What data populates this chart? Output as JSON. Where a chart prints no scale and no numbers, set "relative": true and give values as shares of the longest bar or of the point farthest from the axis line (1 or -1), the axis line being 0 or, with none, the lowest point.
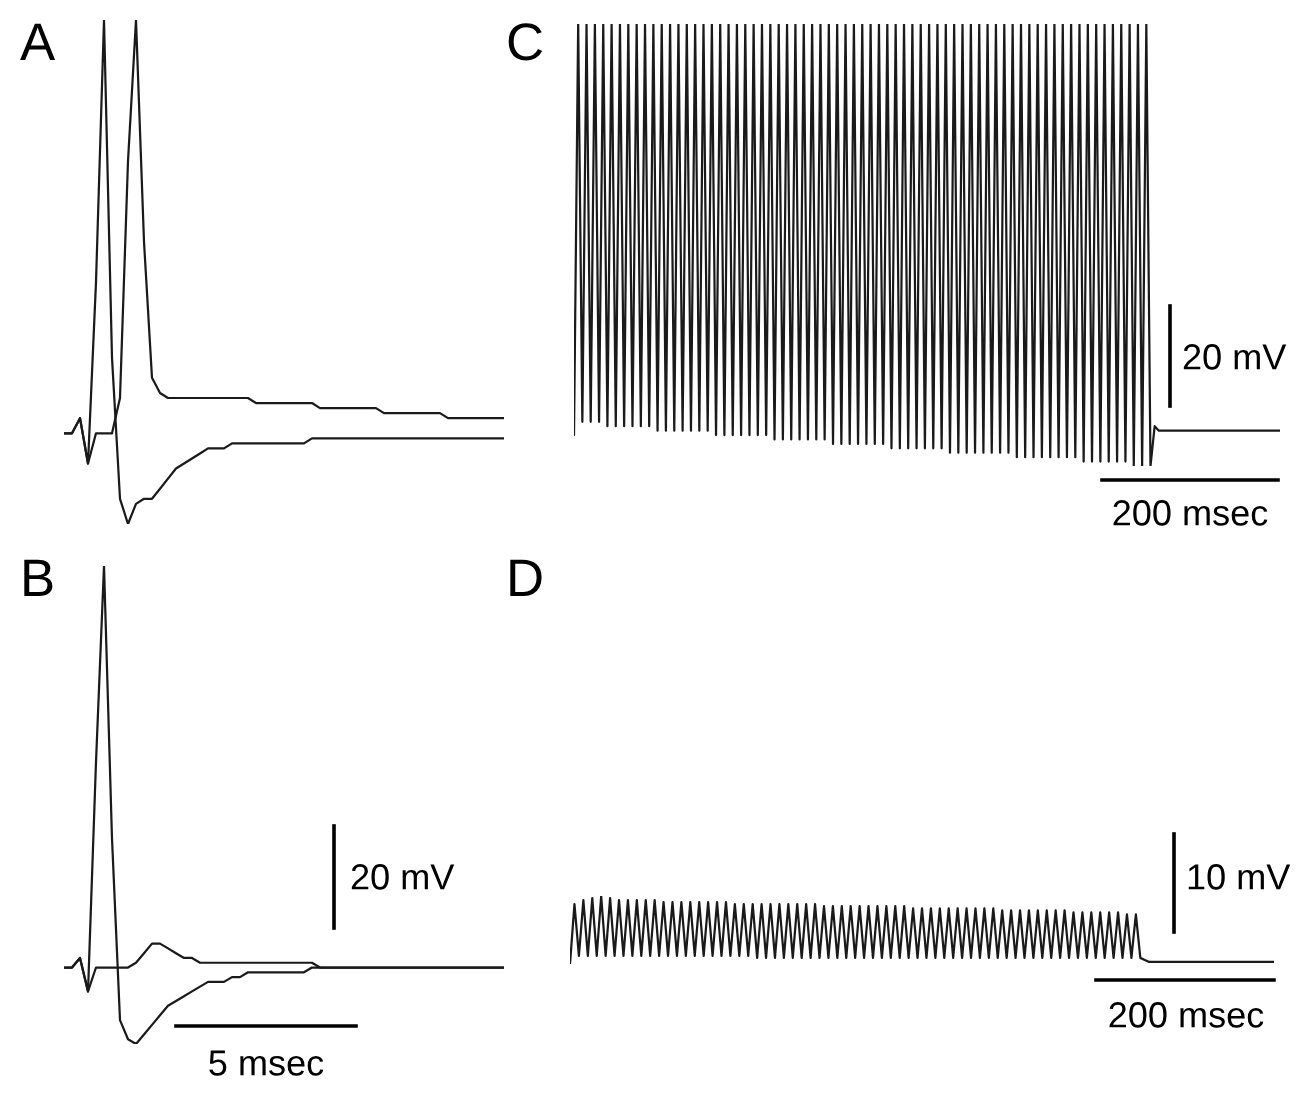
{
  "chart_data": [
    {
      "type": "line",
      "title": "A",
      "relative": true,
      "categories": [
        null,
        null,
        null,
        null,
        null,
        null,
        null,
        null,
        null,
        null,
        null,
        null,
        null,
        null,
        null,
        null,
        null,
        null,
        null,
        null,
        null,
        null,
        null,
        null,
        null,
        null,
        null,
        null,
        null,
        null,
        null,
        null,
        null,
        null,
        null,
        null,
        null,
        null,
        null,
        null,
        null,
        null,
        null,
        null,
        null,
        null,
        null,
        null,
        null,
        null,
        null,
        null,
        null,
        null,
        null,
        null
      ],
      "series": [
        {
          "color": "#1a1a1a",
          "values": [
            0.18,
            0.18,
            0.21,
            0.12,
            0.48,
            1,
            0.33,
            0.05,
            0,
            0.04,
            0.05,
            0.05,
            0.07,
            0.09,
            0.11,
            0.12,
            0.13,
            0.14,
            0.15,
            0.15,
            0.15,
            0.16,
            0.16,
            0.16,
            0.16,
            0.16,
            0.16,
            0.16,
            0.16,
            0.16,
            0.16,
            0.17,
            0.17,
            0.17,
            0.17,
            0.17,
            0.17,
            0.17,
            0.17,
            0.17,
            0.17,
            0.17,
            0.17,
            0.17,
            0.17,
            0.17,
            0.17,
            0.17,
            0.17,
            0.17,
            0.17,
            0.17,
            0.17,
            0.17,
            0.17,
            0.17
          ]
        },
        {
          "color": "#1a1a1a",
          "values": [
            0.18,
            0.18,
            0.21,
            0.12,
            0.18,
            0.18,
            0.18,
            0.25,
            0.72,
            1,
            0.56,
            0.29,
            0.26,
            0.25,
            0.25,
            0.25,
            0.25,
            0.25,
            0.25,
            0.25,
            0.25,
            0.25,
            0.25,
            0.25,
            0.24,
            0.24,
            0.24,
            0.24,
            0.24,
            0.24,
            0.24,
            0.24,
            0.23,
            0.23,
            0.23,
            0.23,
            0.23,
            0.23,
            0.23,
            0.23,
            0.22,
            0.22,
            0.22,
            0.22,
            0.22,
            0.22,
            0.22,
            0.22,
            0.21,
            0.21,
            0.21,
            0.21,
            0.21,
            0.21,
            0.21,
            0.21
          ]
        }
      ]
    },
    {
      "type": "line",
      "title": "B",
      "relative": true,
      "categories": [
        null,
        null,
        null,
        null,
        null,
        null,
        null,
        null,
        null,
        null,
        null,
        null,
        null,
        null,
        null,
        null,
        null,
        null,
        null,
        null,
        null,
        null,
        null,
        null,
        null,
        null,
        null,
        null,
        null,
        null,
        null,
        null,
        null,
        null,
        null,
        null,
        null,
        null,
        null,
        null,
        null,
        null,
        null,
        null,
        null,
        null,
        null,
        null,
        null,
        null,
        null,
        null,
        null,
        null,
        null,
        null
      ],
      "series": [
        {
          "color": "#1a1a1a",
          "values": [
            0.16,
            0.16,
            0.18,
            0.11,
            0.59,
            1,
            0.43,
            0.05,
            0.01,
            0,
            0.02,
            0.04,
            0.06,
            0.08,
            0.09,
            0.1,
            0.11,
            0.12,
            0.13,
            0.13,
            0.13,
            0.14,
            0.14,
            0.15,
            0.15,
            0.15,
            0.15,
            0.15,
            0.15,
            0.15,
            0.15,
            0.16,
            0.16,
            0.16,
            0.16,
            0.16,
            0.16,
            0.16,
            0.16,
            0.16,
            0.16,
            0.16,
            0.16,
            0.16,
            0.16,
            0.16,
            0.16,
            0.16,
            0.16,
            0.16,
            0.16,
            0.16,
            0.16,
            0.16,
            0.16,
            0.16
          ]
        },
        {
          "color": "#1a1a1a",
          "values": [
            0.16,
            0.16,
            0.18,
            0.11,
            0.16,
            0.16,
            0.16,
            0.16,
            0.16,
            0.17,
            0.19,
            0.21,
            0.21,
            0.2,
            0.19,
            0.18,
            0.18,
            0.17,
            0.17,
            0.17,
            0.17,
            0.17,
            0.17,
            0.17,
            0.17,
            0.17,
            0.17,
            0.17,
            0.17,
            0.17,
            0.17,
            0.17,
            0.16,
            0.16,
            0.16,
            0.16,
            0.16,
            0.16,
            0.16,
            0.16,
            0.16,
            0.16,
            0.16,
            0.16,
            0.16,
            0.16,
            0.16,
            0.16,
            0.16,
            0.16,
            0.16,
            0.16,
            0.16,
            0.16,
            0.16,
            0.16
          ]
        }
      ],
      "annotations": [
        "20 mV",
        "5 msec"
      ]
    },
    {
      "type": "line",
      "title": "C",
      "relative": true,
      "categories": [
        null,
        null,
        null,
        null,
        null,
        null,
        null,
        null,
        null,
        null,
        null,
        null,
        null,
        null,
        null,
        null,
        null,
        null,
        null,
        null,
        null,
        null,
        null,
        null,
        null,
        null,
        null,
        null,
        null,
        null,
        null,
        null,
        null,
        null,
        null,
        null,
        null,
        null,
        null,
        null,
        null,
        null,
        null,
        null,
        null,
        null,
        null,
        null,
        null,
        null,
        null,
        null,
        null,
        null,
        null,
        null,
        null,
        null,
        null,
        null,
        null,
        null,
        null,
        null,
        null,
        null,
        null,
        null,
        null,
        null,
        null,
        null,
        null,
        null,
        null,
        null,
        null,
        null,
        null,
        null,
        null,
        null,
        null,
        null,
        null,
        null,
        null,
        null,
        null,
        null,
        null,
        null,
        null,
        null,
        null,
        null,
        null,
        null,
        null,
        null,
        null,
        null,
        null,
        null,
        null,
        null,
        null,
        null,
        null,
        null,
        null,
        null,
        null,
        null,
        null,
        null,
        null,
        null,
        null,
        null,
        null,
        null,
        null,
        null,
        null,
        null,
        null,
        null,
        null,
        null,
        null,
        null,
        null,
        null,
        null,
        null,
        null,
        null,
        null,
        null,
        null,
        null,
        null,
        null,
        null,
        null,
        null,
        null,
        null,
        null,
        null,
        null,
        null,
        null,
        null,
        null,
        null,
        null,
        null,
        null,
        null,
        null,
        null,
        null,
        null,
        null,
        null,
        null,
        null,
        null
      ],
      "series": [
        {
          "color": "#1a1a1a",
          "values": [
            0.07,
            1,
            0.1,
            1,
            0.1,
            1,
            0.1,
            1,
            0.09,
            1,
            0.09,
            1,
            0.09,
            1,
            0.09,
            1,
            0.09,
            1,
            0.09,
            1,
            0.08,
            1,
            0.08,
            1,
            0.08,
            1,
            0.08,
            1,
            0.08,
            1,
            0.08,
            1,
            0.08,
            1,
            0.07,
            1,
            0.07,
            1,
            0.07,
            1,
            0.07,
            1,
            0.07,
            1,
            0.07,
            1,
            0.07,
            1,
            0.06,
            1,
            0.06,
            1,
            0.06,
            1,
            0.06,
            1,
            0.06,
            1,
            0.06,
            1,
            0.06,
            1,
            0.05,
            1,
            0.05,
            1,
            0.05,
            1,
            0.05,
            1,
            0.05,
            1,
            0.05,
            1,
            0.05,
            1,
            0.04,
            1,
            0.04,
            1,
            0.04,
            1,
            0.04,
            1,
            0.04,
            1,
            0.04,
            1,
            0.04,
            1,
            0.03,
            1,
            0.03,
            1,
            0.03,
            1,
            0.03,
            1,
            0.03,
            1,
            0.03,
            1,
            0.03,
            1,
            0.03,
            1,
            0.02,
            1,
            0.02,
            1,
            0.02,
            1,
            0.02,
            1,
            0.02,
            1,
            0.02,
            1,
            0.02,
            1,
            0.02,
            1,
            0.01,
            1,
            0.01,
            1,
            0.01,
            1,
            0.01,
            1,
            0.01,
            1,
            0.01,
            1,
            0,
            1,
            0,
            1,
            0,
            0.09,
            0.08,
            0.08,
            0.08,
            0.08,
            0.08,
            0.08,
            0.08,
            0.08,
            0.08,
            0.08,
            0.08,
            0.08,
            0.08,
            0.08,
            0.08,
            0.08,
            0.08,
            0.08,
            0.08,
            0.08,
            0.08,
            0.08,
            0.08,
            0.08,
            0.08,
            0.08,
            0.08,
            0.08,
            0.08,
            0.08
          ]
        }
      ],
      "annotations": [
        "20 mV",
        "200 msec"
      ]
    },
    {
      "type": "line",
      "title": "D",
      "relative": true,
      "categories": [
        null,
        null,
        null,
        null,
        null,
        null,
        null,
        null,
        null,
        null,
        null,
        null,
        null,
        null,
        null,
        null,
        null,
        null,
        null,
        null,
        null,
        null,
        null,
        null,
        null,
        null,
        null,
        null,
        null,
        null,
        null,
        null,
        null,
        null,
        null,
        null,
        null,
        null,
        null,
        null,
        null,
        null,
        null,
        null,
        null,
        null,
        null,
        null,
        null,
        null,
        null,
        null,
        null,
        null,
        null,
        null,
        null,
        null,
        null,
        null,
        null,
        null,
        null,
        null,
        null,
        null,
        null,
        null,
        null,
        null,
        null,
        null,
        null,
        null,
        null,
        null,
        null,
        null,
        null,
        null,
        null,
        null,
        null,
        null,
        null,
        null,
        null,
        null,
        null,
        null,
        null,
        null,
        null,
        null,
        null,
        null,
        null,
        null,
        null,
        null,
        null,
        null,
        null,
        null,
        null,
        null,
        null,
        null,
        null,
        null,
        null,
        null,
        null,
        null,
        null,
        null,
        null,
        null,
        null,
        null,
        null,
        null,
        null,
        null,
        null,
        null,
        null,
        null,
        null,
        null,
        null,
        null,
        null,
        null,
        null,
        null,
        null,
        null,
        null,
        null,
        null,
        null,
        null,
        null,
        null,
        null,
        null,
        null,
        null,
        null,
        null,
        null,
        null,
        null,
        null,
        null,
        null,
        null,
        null
      ],
      "series": [
        {
          "color": "#1a1a1a",
          "values": [
            0,
            0.88,
            0.12,
            0.94,
            0.12,
            0.97,
            0.12,
            1,
            0.12,
            0.97,
            0.12,
            0.94,
            0.12,
            0.94,
            0.12,
            0.94,
            0.12,
            0.94,
            0.12,
            0.94,
            0.12,
            0.91,
            0.12,
            0.91,
            0.12,
            0.91,
            0.12,
            0.91,
            0.12,
            0.91,
            0.12,
            0.91,
            0.12,
            0.91,
            0.12,
            0.91,
            0.12,
            0.88,
            0.12,
            0.88,
            0.12,
            0.88,
            0.09,
            0.88,
            0.09,
            0.88,
            0.09,
            0.88,
            0.09,
            0.88,
            0.09,
            0.88,
            0.09,
            0.88,
            0.09,
            0.88,
            0.09,
            0.85,
            0.09,
            0.85,
            0.09,
            0.85,
            0.09,
            0.85,
            0.09,
            0.85,
            0.09,
            0.85,
            0.09,
            0.85,
            0.09,
            0.85,
            0.09,
            0.85,
            0.09,
            0.85,
            0.09,
            0.82,
            0.09,
            0.82,
            0.09,
            0.82,
            0.09,
            0.82,
            0.09,
            0.82,
            0.09,
            0.82,
            0.09,
            0.82,
            0.09,
            0.82,
            0.09,
            0.82,
            0.09,
            0.82,
            0.09,
            0.79,
            0.09,
            0.79,
            0.09,
            0.79,
            0.09,
            0.79,
            0.09,
            0.79,
            0.09,
            0.79,
            0.09,
            0.79,
            0.09,
            0.79,
            0.09,
            0.76,
            0.09,
            0.76,
            0.09,
            0.76,
            0.09,
            0.76,
            0.09,
            0.76,
            0.09,
            0.76,
            0.09,
            0.73,
            0.09,
            0.73,
            0.09,
            0.06,
            0.03,
            0.03,
            0.03,
            0.03,
            0.03,
            0.03,
            0.03,
            0.03,
            0.03,
            0.03,
            0.03,
            0.03,
            0.03,
            0.03,
            0.03,
            0.03,
            0.03,
            0.03,
            0.03,
            0.03,
            0.03,
            0.03,
            0.03,
            0.03,
            0.03,
            0.03,
            0.03,
            0.03,
            0.03
          ]
        }
      ],
      "annotations": [
        "10 mV",
        "200 msec"
      ]
    }
  ]
}
